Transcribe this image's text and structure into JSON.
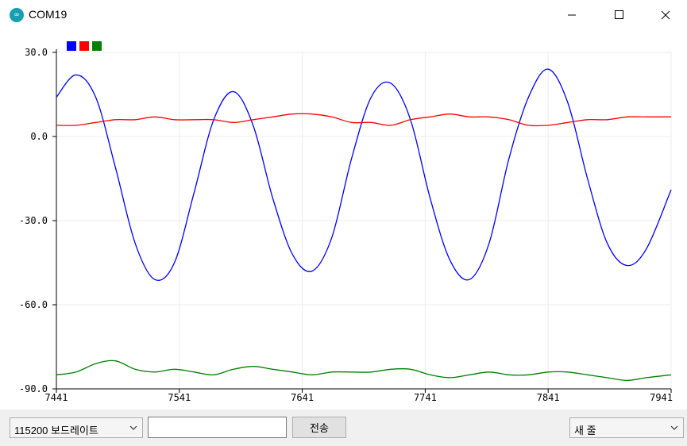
{
  "window": {
    "title": "COM19",
    "icon": "arduino-logo-icon",
    "icon_glyph": "∞"
  },
  "plotter": {
    "legend": [
      {
        "color": "#0000ff",
        "name": ""
      },
      {
        "color": "#ff0000",
        "name": ""
      },
      {
        "color": "#008000",
        "name": ""
      }
    ]
  },
  "chart_data": {
    "type": "line",
    "title": "",
    "xlabel": "",
    "ylabel": "",
    "xlim": [
      7441,
      7941
    ],
    "ylim": [
      -90,
      30
    ],
    "grid": true,
    "legend_position": "top-left",
    "x_ticks": [
      "7441",
      "7541",
      "7641",
      "7741",
      "7841",
      "7941"
    ],
    "y_ticks": [
      "30.0",
      "0.0",
      "-30.0",
      "-60.0",
      "-90.0"
    ],
    "x": [
      7441,
      7457,
      7473,
      7489,
      7505,
      7521,
      7537,
      7553,
      7569,
      7585,
      7601,
      7617,
      7633,
      7649,
      7665,
      7681,
      7697,
      7713,
      7729,
      7745,
      7761,
      7777,
      7793,
      7809,
      7825,
      7841,
      7857,
      7873,
      7889,
      7905,
      7921,
      7941
    ],
    "series": [
      {
        "color": "#0000ff",
        "values": [
          14,
          22,
          14,
          -11,
          -38,
          -51,
          -45,
          -20,
          6,
          16,
          4,
          -22,
          -42,
          -48,
          -36,
          -8,
          14,
          19,
          6,
          -22,
          -44,
          -51,
          -38,
          -8,
          14,
          24,
          12,
          -15,
          -38,
          -46,
          -40,
          -19
        ]
      },
      {
        "color": "#ff0000",
        "values": [
          4,
          4,
          5,
          6,
          6,
          7,
          6,
          6,
          6,
          5,
          6,
          7,
          8,
          8,
          7,
          5,
          5,
          4,
          6,
          7,
          8,
          7,
          7,
          6,
          4,
          4,
          5,
          6,
          6,
          7,
          7,
          7
        ]
      },
      {
        "color": "#008000",
        "values": [
          -85,
          -84,
          -81,
          -80,
          -83,
          -84,
          -83,
          -84,
          -85,
          -83,
          -82,
          -83,
          -84,
          -85,
          -84,
          -84,
          -84,
          -83,
          -83,
          -85,
          -86,
          -85,
          -84,
          -85,
          -85,
          -84,
          -84,
          -85,
          -86,
          -87,
          -86,
          -85
        ]
      }
    ]
  },
  "bottom": {
    "baud_value": "115200 보드레이트",
    "send_input_value": "",
    "send_label": "전송",
    "line_ending_value": "새 줄"
  }
}
